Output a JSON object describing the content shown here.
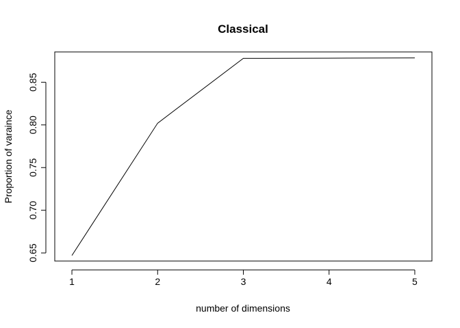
{
  "chart_data": {
    "type": "line",
    "title": "Classical",
    "xlabel": "number of dimensions",
    "ylabel": "Proportion of varaince",
    "x": [
      1,
      2,
      3,
      4,
      5
    ],
    "series": [
      {
        "values": [
          0.647,
          0.802,
          0.878,
          0.8782,
          0.8785
        ]
      }
    ],
    "xlim": [
      0.8,
      5.2
    ],
    "ylim": [
      0.6405,
      0.8855
    ],
    "xticks": [
      1,
      2,
      3,
      4,
      5
    ],
    "xtick_labels": [
      "1",
      "2",
      "3",
      "4",
      "5"
    ],
    "yticks": [
      0.65,
      0.7,
      0.75,
      0.8,
      0.85
    ],
    "ytick_labels": [
      "0.65",
      "0.70",
      "0.75",
      "0.80",
      "0.85"
    ],
    "grid": false,
    "legend": "none",
    "line_color": "#000000"
  }
}
